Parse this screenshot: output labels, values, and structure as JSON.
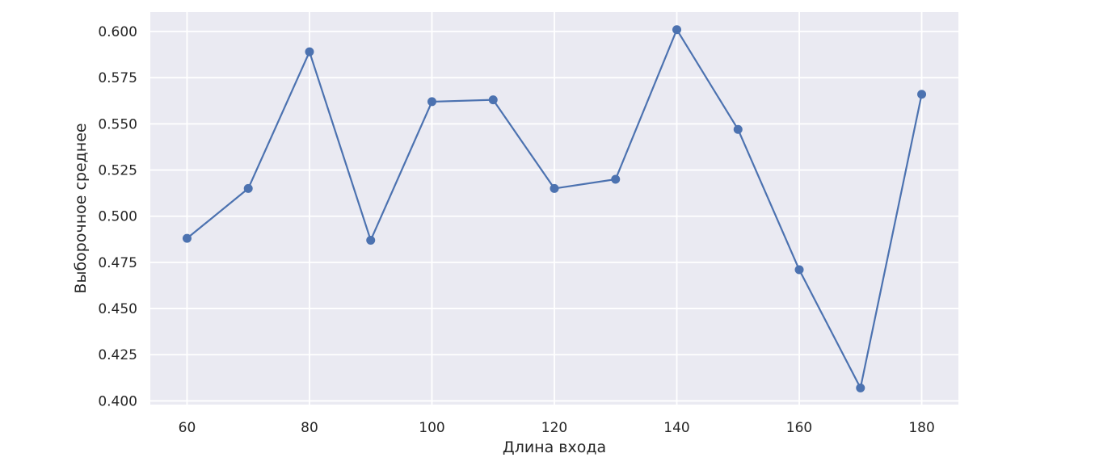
{
  "chart_data": {
    "type": "line",
    "title": "",
    "xlabel": "Длина входа",
    "ylabel": "Выборочное среднее",
    "xlim": [
      54,
      186
    ],
    "ylim": [
      0.398,
      0.6105
    ],
    "grid": true,
    "background": "#eaeaf2",
    "x_ticks": [
      60,
      80,
      100,
      120,
      140,
      160,
      180
    ],
    "x_tick_labels": [
      "60",
      "80",
      "100",
      "120",
      "140",
      "160",
      "180"
    ],
    "y_ticks": [
      0.4,
      0.425,
      0.45,
      0.475,
      0.5,
      0.525,
      0.55,
      0.575,
      0.6
    ],
    "y_tick_labels": [
      "0.400",
      "0.425",
      "0.450",
      "0.475",
      "0.500",
      "0.525",
      "0.550",
      "0.575",
      "0.600"
    ],
    "series": [
      {
        "color": "#4c72b0",
        "marker": "circle",
        "x": [
          60,
          70,
          80,
          90,
          100,
          110,
          120,
          130,
          140,
          150,
          160,
          170,
          180
        ],
        "y": [
          0.488,
          0.515,
          0.589,
          0.487,
          0.562,
          0.563,
          0.515,
          0.52,
          0.601,
          0.547,
          0.471,
          0.407,
          0.566
        ]
      }
    ]
  }
}
